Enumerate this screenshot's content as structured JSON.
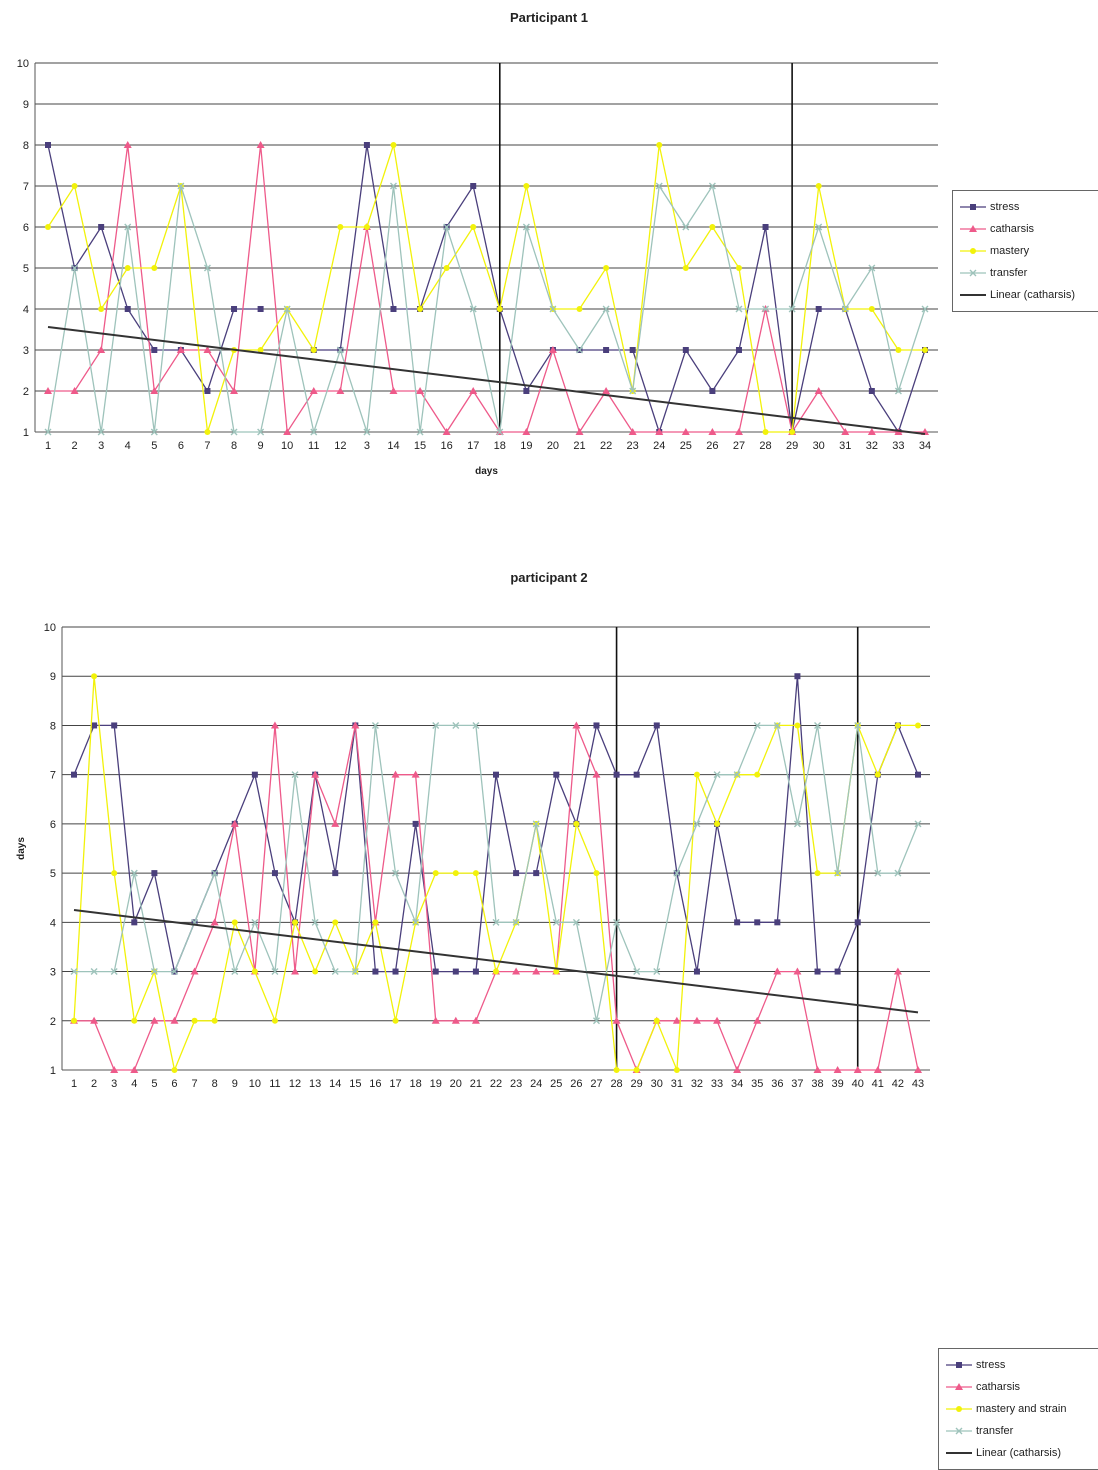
{
  "chart_data": [
    {
      "type": "line",
      "title": "Participant 1",
      "xlabel": "days",
      "ylabel": "",
      "ylim": [
        1,
        10
      ],
      "yticks": [
        1,
        2,
        3,
        4,
        5,
        6,
        7,
        8,
        9,
        10
      ],
      "categories": [
        "1",
        "2",
        "3",
        "4",
        "5",
        "6",
        "7",
        "8",
        "9",
        "10",
        "11",
        "12",
        "3",
        "14",
        "15",
        "16",
        "17",
        "18",
        "19",
        "20",
        "21",
        "22",
        "23",
        "24",
        "25",
        "26",
        "27",
        "28",
        "29",
        "30",
        "31",
        "32",
        "33",
        "34"
      ],
      "grid": true,
      "legend_placement": "right",
      "vertical_markers_at_day": [
        18,
        29
      ],
      "series": [
        {
          "name": "stress",
          "color": "#4a3f7c",
          "marker": "square",
          "values": [
            8,
            5,
            6,
            4,
            3,
            3,
            2,
            4,
            4,
            null,
            3,
            3,
            8,
            4,
            4,
            6,
            7,
            4,
            2,
            3,
            3,
            3,
            3,
            1,
            3,
            2,
            3,
            6,
            1,
            4,
            4,
            2,
            1,
            3
          ]
        },
        {
          "name": "catharsis",
          "color": "#ee5a8a",
          "marker": "triangle",
          "values": [
            2,
            2,
            3,
            8,
            2,
            3,
            3,
            2,
            8,
            1,
            2,
            2,
            6,
            2,
            2,
            1,
            2,
            1,
            1,
            3,
            1,
            2,
            1,
            1,
            1,
            1,
            1,
            4,
            1,
            2,
            1,
            1,
            1,
            1
          ]
        },
        {
          "name": "mastery",
          "color": "#f2f20a",
          "marker": "dot",
          "values": [
            6,
            7,
            4,
            5,
            5,
            7,
            1,
            3,
            3,
            4,
            3,
            6,
            6,
            8,
            4,
            5,
            6,
            4,
            7,
            4,
            4,
            5,
            2,
            8,
            5,
            6,
            5,
            1,
            1,
            7,
            4,
            4,
            3,
            3
          ]
        },
        {
          "name": "transfer",
          "color": "#9ec3bb",
          "marker": "x",
          "values": [
            1,
            5,
            1,
            6,
            1,
            7,
            5,
            1,
            1,
            4,
            1,
            3,
            1,
            7,
            1,
            6,
            4,
            1,
            6,
            4,
            3,
            4,
            2,
            7,
            6,
            7,
            4,
            4,
            4,
            6,
            4,
            5,
            2,
            4
          ]
        },
        {
          "name": "Linear (catharsis)",
          "color": "#333333",
          "marker": "none",
          "trend_from": 3.56,
          "trend_to": 0.95
        }
      ]
    },
    {
      "type": "line",
      "title": "participant 2",
      "xlabel": "",
      "ylabel": "days",
      "ylim": [
        1,
        10
      ],
      "yticks": [
        1,
        2,
        3,
        4,
        5,
        6,
        7,
        8,
        9,
        10
      ],
      "categories": [
        "1",
        "2",
        "3",
        "4",
        "5",
        "6",
        "7",
        "8",
        "9",
        "10",
        "11",
        "12",
        "13",
        "14",
        "15",
        "16",
        "17",
        "18",
        "19",
        "20",
        "21",
        "22",
        "23",
        "24",
        "25",
        "26",
        "27",
        "28",
        "29",
        "30",
        "31",
        "32",
        "33",
        "34",
        "35",
        "36",
        "37",
        "38",
        "39",
        "40",
        "41",
        "42",
        "43"
      ],
      "grid": true,
      "legend_placement": "right",
      "vertical_markers_at_day": [
        28,
        40
      ],
      "series": [
        {
          "name": "stress",
          "color": "#4a3f7c",
          "marker": "square",
          "values": [
            7,
            8,
            8,
            4,
            5,
            3,
            4,
            5,
            6,
            7,
            5,
            4,
            7,
            5,
            8,
            3,
            3,
            6,
            3,
            3,
            3,
            7,
            5,
            5,
            7,
            6,
            8,
            7,
            7,
            8,
            5,
            3,
            6,
            4,
            4,
            4,
            9,
            3,
            3,
            4,
            7,
            8,
            7
          ]
        },
        {
          "name": "catharsis",
          "color": "#ee5a8a",
          "marker": "triangle",
          "values": [
            2,
            2,
            1,
            1,
            2,
            2,
            3,
            4,
            6,
            3,
            8,
            3,
            7,
            6,
            8,
            4,
            7,
            7,
            2,
            2,
            2,
            3,
            3,
            3,
            3,
            8,
            7,
            2,
            1,
            2,
            2,
            2,
            2,
            1,
            2,
            3,
            3,
            1,
            1,
            1,
            1,
            3,
            1
          ]
        },
        {
          "name": "mastery and strain",
          "color": "#f2f20a",
          "marker": "dot",
          "values": [
            2,
            9,
            5,
            2,
            3,
            1,
            2,
            2,
            4,
            3,
            2,
            4,
            3,
            4,
            3,
            4,
            2,
            4,
            5,
            5,
            5,
            3,
            4,
            6,
            3,
            6,
            5,
            1,
            1,
            2,
            1,
            7,
            6,
            7,
            7,
            8,
            8,
            5,
            5,
            8,
            7,
            8,
            8
          ]
        },
        {
          "name": "transfer",
          "color": "#9ec3bb",
          "marker": "x",
          "values": [
            3,
            3,
            3,
            5,
            3,
            3,
            4,
            5,
            3,
            4,
            3,
            7,
            4,
            3,
            3,
            8,
            5,
            4,
            8,
            8,
            8,
            4,
            4,
            6,
            4,
            4,
            2,
            4,
            3,
            3,
            5,
            6,
            7,
            7,
            8,
            8,
            6,
            8,
            5,
            8,
            5,
            5,
            6
          ]
        },
        {
          "name": "Linear (catharsis)",
          "color": "#333333",
          "marker": "none",
          "trend_from": 4.25,
          "trend_to": 2.17
        }
      ]
    }
  ]
}
